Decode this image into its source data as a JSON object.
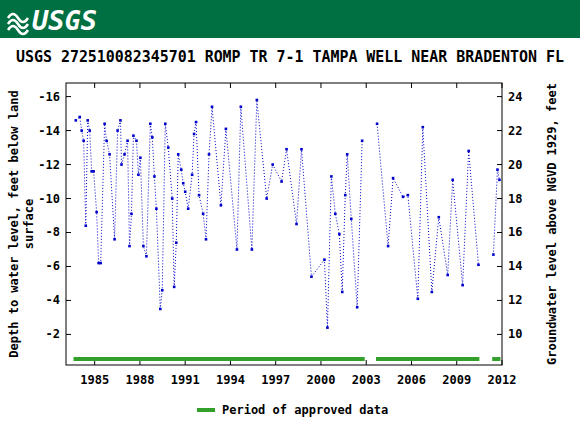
{
  "chart_data": {
    "type": "line",
    "logo_text": "USGS",
    "title": "USGS 272510082345701 ROMP TR 7-1 TAMPA WELL NEAR BRADENTON FL",
    "y_label": [
      "Depth to water level, feet below land",
      "surface"
    ],
    "y2_label": "Groundwater level above NGVD 1929, feet",
    "x": [
      1983.75,
      1984.01,
      1984.14,
      1984.27,
      1984.41,
      1984.54,
      1984.67,
      1984.8,
      1984.93,
      1985.13,
      1985.26,
      1985.4,
      1985.66,
      1985.79,
      1985.99,
      1986.32,
      1986.52,
      1986.71,
      1986.78,
      1986.98,
      1987.18,
      1987.31,
      1987.44,
      1987.57,
      1987.77,
      1987.9,
      1988.03,
      1988.23,
      1988.43,
      1988.69,
      1988.82,
      1988.96,
      1989.09,
      1989.35,
      1989.48,
      1989.68,
      1989.88,
      1990.14,
      1990.27,
      1990.41,
      1990.54,
      1990.74,
      1990.87,
      1991.0,
      1991.2,
      1991.46,
      1991.59,
      1991.72,
      1991.92,
      1992.19,
      1992.38,
      1992.58,
      1992.78,
      1993.37,
      1993.7,
      1994.43,
      1994.69,
      1995.42,
      1995.75,
      1996.4,
      1996.8,
      1997.39,
      1997.72,
      1998.38,
      1998.71,
      1999.37,
      2000.23,
      2000.43,
      2000.69,
      2000.95,
      2001.22,
      2001.41,
      2001.61,
      2001.74,
      2002.01,
      2002.4,
      2002.73,
      null,
      2003.72,
      2004.45,
      2004.78,
      2005.44,
      2005.76,
      2006.42,
      2006.75,
      2007.35,
      2007.81,
      2008.4,
      2008.73,
      2009.39,
      2009.79,
      2010.44,
      null,
      2011.43,
      2011.7,
      2011.83
    ],
    "series": [
      {
        "color": "#0000cc",
        "marker": "square",
        "line_style": "dotted",
        "values": [
          -14.6,
          -14.8,
          -14.0,
          -13.4,
          -8.4,
          -14.6,
          -14.0,
          -11.6,
          -11.6,
          -9.2,
          -6.2,
          -6.2,
          -14.4,
          -13.4,
          -12.6,
          -7.6,
          -14.0,
          -14.6,
          -12.0,
          -12.6,
          -13.4,
          -7.2,
          -9.1,
          -13.7,
          -13.4,
          -11.4,
          -12.4,
          -7.2,
          -6.6,
          -14.4,
          -13.6,
          -11.3,
          -9.4,
          -3.5,
          -4.6,
          -14.4,
          -13.0,
          -10.0,
          -4.8,
          -7.4,
          -12.6,
          -11.7,
          -10.9,
          -10.4,
          -9.4,
          -11.4,
          -13.8,
          -14.5,
          -10.2,
          -9.1,
          -7.6,
          -12.6,
          -15.4,
          -9.6,
          -14.1,
          -7.0,
          -15.4,
          -7.0,
          -15.8,
          -10.0,
          -12.0,
          -11.0,
          -12.9,
          -8.5,
          -12.9,
          -5.4,
          -6.4,
          -2.4,
          -11.3,
          -9.1,
          -7.9,
          -4.5,
          -10.2,
          -12.6,
          -8.8,
          -3.6,
          -13.4,
          null,
          -14.4,
          -7.2,
          -11.2,
          -10.1,
          -10.2,
          -4.1,
          -14.2,
          -4.5,
          -8.9,
          -5.5,
          -11.1,
          -4.9,
          -12.8,
          -6.1,
          null,
          -6.7,
          -11.7,
          -11.1
        ]
      }
    ],
    "xlim": [
      1983.1,
      2012
    ],
    "xticks": [
      1985,
      1988,
      1991,
      1994,
      1997,
      2000,
      2003,
      2006,
      2009,
      2012
    ],
    "ylim": [
      -0.2,
      -16.8
    ],
    "yticks": [
      -16,
      -14,
      -12,
      -10,
      -8,
      -6,
      -4,
      -2
    ],
    "y2lim": [
      8.2,
      24.8
    ],
    "y2ticks": [
      10,
      12,
      14,
      16,
      18,
      20,
      22,
      24
    ],
    "approved_periods": [
      [
        1983.6,
        2002.9
      ],
      [
        2003.65,
        2010.5
      ],
      [
        2011.35,
        2011.9
      ]
    ],
    "approved_color": "#33a02c",
    "legend_label": "Period of approved data"
  }
}
